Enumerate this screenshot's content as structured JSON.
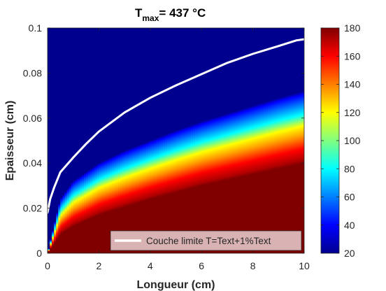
{
  "chart_data": {
    "type": "heatmap",
    "title": {
      "prefix": "T",
      "subscript": "max",
      "suffix": "= 437 °C"
    },
    "xlabel": "Longueur (cm)",
    "ylabel": "Epaisseur (cm)",
    "xlim": [
      0,
      10
    ],
    "ylim": [
      0,
      0.1
    ],
    "x_ticks": [
      0,
      2,
      4,
      6,
      8,
      10
    ],
    "x_tick_labels": [
      "0",
      "2",
      "4",
      "6",
      "8",
      "10"
    ],
    "y_ticks": [
      0,
      0.02,
      0.04,
      0.06,
      0.08,
      0.1
    ],
    "y_tick_labels": [
      "0",
      "0.02",
      "0.04",
      "0.06",
      "0.08",
      "0.1"
    ],
    "colorbar": {
      "range": [
        20,
        180
      ],
      "ticks": [
        20,
        40,
        60,
        80,
        100,
        120,
        140,
        160,
        180
      ],
      "tick_labels": [
        "20",
        "40",
        "60",
        "80",
        "100",
        "120",
        "140",
        "160",
        "180"
      ],
      "colormap": "jet"
    },
    "field_band": {
      "description": "",
      "x": [
        0,
        0.5,
        1,
        2,
        3,
        4,
        5,
        6,
        7,
        8,
        9,
        10
      ],
      "hot_edge_y": [
        0,
        0.0085,
        0.012,
        0.017,
        0.0205,
        0.024,
        0.027,
        0.03,
        0.0325,
        0.035,
        0.0375,
        0.04
      ],
      "cold_edge_y": [
        0,
        0.024,
        0.032,
        0.04,
        0.0455,
        0.05,
        0.0545,
        0.0585,
        0.062,
        0.0655,
        0.069,
        0.072
      ]
    },
    "series": [
      {
        "name": "Couche limite T=Text+1%Text",
        "color": "#ffffff",
        "x": [
          0,
          0.1,
          0.25,
          0.5,
          1,
          1.5,
          2,
          3,
          4,
          5,
          6,
          7,
          8,
          9,
          9.7,
          10
        ],
        "y": [
          0.018,
          0.024,
          0.029,
          0.036,
          0.0425,
          0.0485,
          0.054,
          0.0625,
          0.069,
          0.0745,
          0.0795,
          0.0845,
          0.0885,
          0.092,
          0.0945,
          0.095
        ]
      }
    ],
    "legend": {
      "position": "bottom-right",
      "label": "Couche limite T=Text+1%Text"
    }
  }
}
